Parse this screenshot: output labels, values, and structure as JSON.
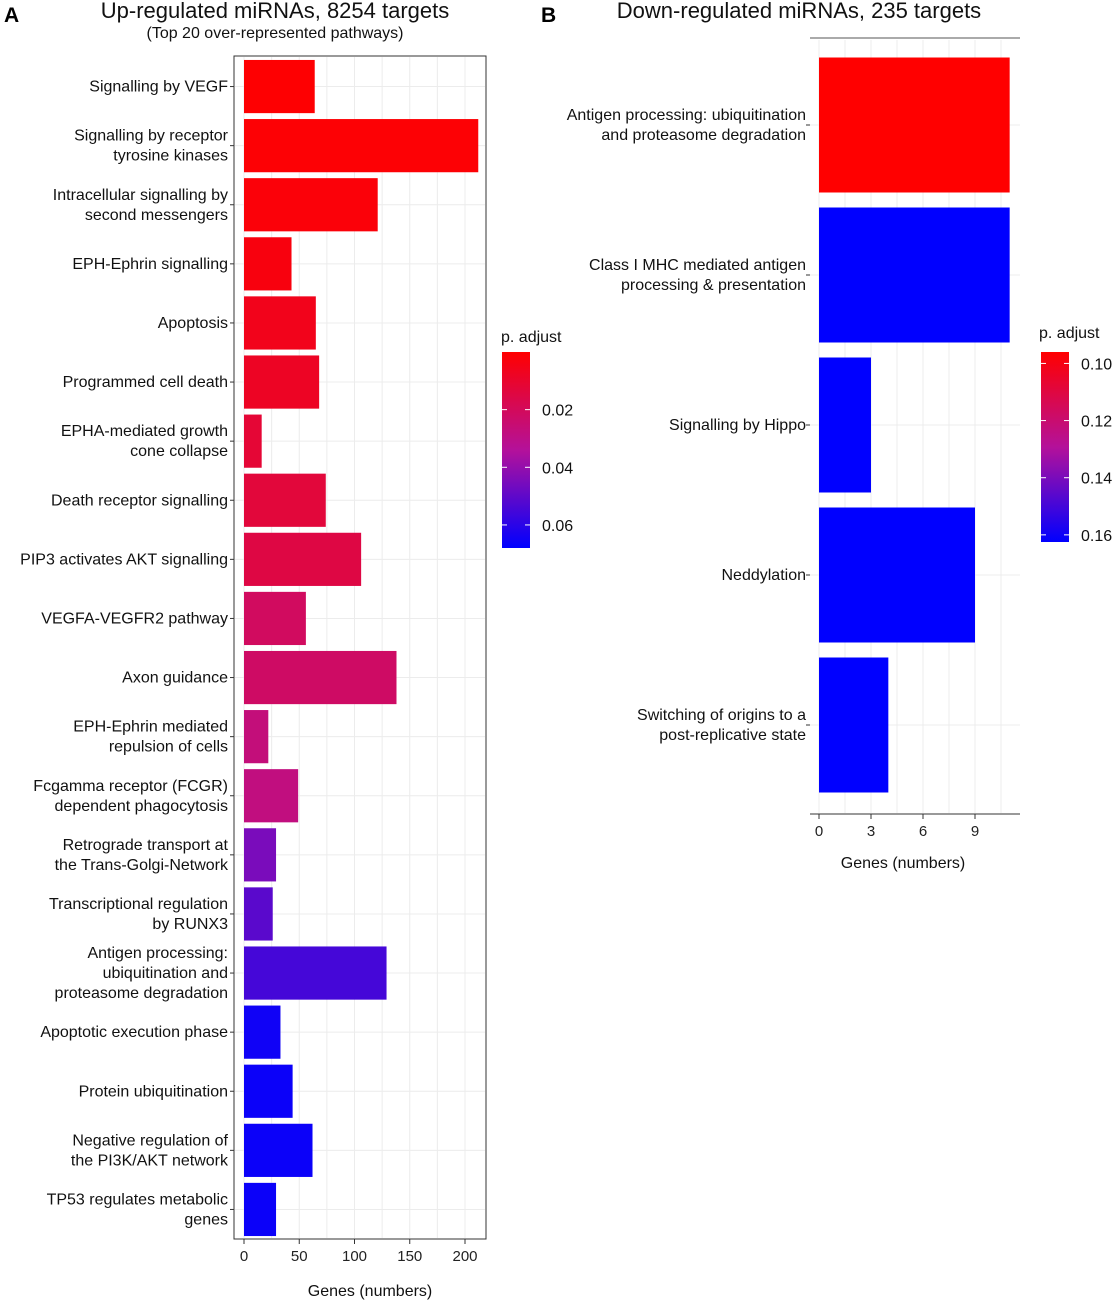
{
  "chart_data": [
    {
      "type": "bar",
      "orientation": "horizontal",
      "panel": "A",
      "title": "Up-regulated miRNAs, 8254 targets",
      "subtitle": "(Top 20 over-represented pathways)",
      "xlabel": "Genes (numbers)",
      "ylabel": "",
      "xlim": [
        0,
        220
      ],
      "xticks": [
        0,
        50,
        100,
        150,
        200
      ],
      "grid": true,
      "categories": [
        [
          "Signalling by VEGF"
        ],
        [
          "Signalling by receptor",
          "tyrosine kinases"
        ],
        [
          "Intracellular signalling by",
          "second messengers"
        ],
        [
          "EPH-Ephrin signalling"
        ],
        [
          "Apoptosis"
        ],
        [
          "Programmed cell death"
        ],
        [
          "EPHA-mediated growth",
          "cone collapse"
        ],
        [
          "Death receptor signalling"
        ],
        [
          "PIP3 activates AKT signalling"
        ],
        [
          "VEGFA-VEGFR2 pathway"
        ],
        [
          "Axon guidance"
        ],
        [
          "EPH-Ephrin mediated",
          "repulsion of cells"
        ],
        [
          "Fcgamma receptor (FCGR)",
          "dependent phagocytosis"
        ],
        [
          "Retrograde transport at",
          "the Trans-Golgi-Network"
        ],
        [
          "Transcriptional regulation",
          "by RUNX3"
        ],
        [
          "Antigen processing:",
          "ubiquitination and",
          "proteasome degradation"
        ],
        [
          "Apoptotic execution phase"
        ],
        [
          "Protein ubiquitination"
        ],
        [
          "Negative regulation of",
          "the PI3K/AKT network"
        ],
        [
          "TP53 regulates metabolic",
          "genes"
        ]
      ],
      "values": [
        64,
        212,
        121,
        43,
        65,
        68,
        16,
        74,
        106,
        56,
        138,
        22,
        49,
        29,
        26,
        129,
        33,
        44,
        62,
        29
      ],
      "p_adjust": [
        0.0005,
        0.001,
        0.002,
        0.003,
        0.006,
        0.008,
        0.012,
        0.013,
        0.015,
        0.021,
        0.022,
        0.027,
        0.028,
        0.045,
        0.051,
        0.055,
        0.065,
        0.066,
        0.066,
        0.066
      ],
      "legend": {
        "title": "p. adjust",
        "placement": "right",
        "range": [
          0,
          0.068
        ],
        "ticks": [
          0.02,
          0.04,
          0.06
        ],
        "tick_labels": [
          "0.02",
          "0.04",
          "0.06"
        ],
        "low_color": "#ff0000",
        "high_color": "#0000ff"
      }
    },
    {
      "type": "bar",
      "orientation": "horizontal",
      "panel": "B",
      "title": "Down-regulated miRNAs, 235 targets",
      "xlabel": "Genes (numbers)",
      "ylabel": "",
      "xlim": [
        0,
        11.4
      ],
      "xticks": [
        0,
        3,
        6,
        9
      ],
      "grid": true,
      "categories": [
        [
          "Antigen processing: ubiquitination",
          "and proteasome degradation"
        ],
        [
          "Class I MHC mediated antigen",
          "processing & presentation"
        ],
        [
          "Signalling by Hippo"
        ],
        [
          "Neddylation"
        ],
        [
          "Switching of origins to a",
          "post-replicative state"
        ]
      ],
      "values": [
        11,
        11,
        3,
        9,
        4
      ],
      "p_adjust": [
        0.096,
        0.1625,
        0.1625,
        0.1625,
        0.1625
      ],
      "legend": {
        "title": "p. adjust",
        "placement": "right",
        "range": [
          0.096,
          0.1625
        ],
        "ticks": [
          0.1,
          0.12,
          0.14,
          0.16
        ],
        "tick_labels": [
          "0.10",
          "0.12",
          "0.14",
          "0.16"
        ],
        "low_color": "#ff0000",
        "high_color": "#0000ff"
      }
    }
  ],
  "colors": {
    "low": "#ff0000",
    "high": "#0000ff",
    "grid": "#ececec",
    "axis": "#333333"
  }
}
